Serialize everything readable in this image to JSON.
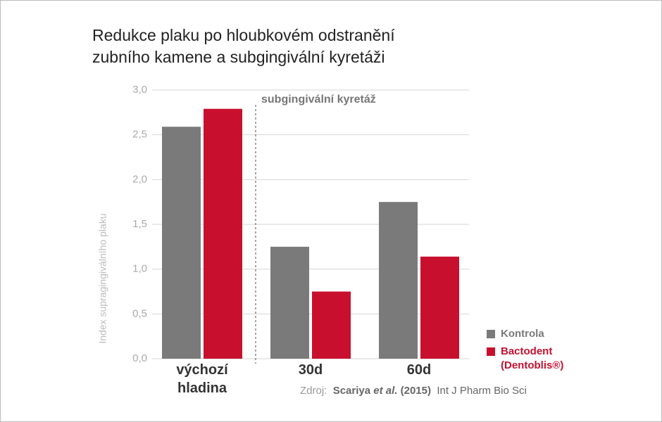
{
  "chart_data": {
    "type": "bar",
    "title": "Redukce plaku po hloubkovém odstranění zubního kamene a subgingivální kyretáži",
    "y_label": "Index supragingiválního plaku",
    "annotation": "subgingivální kyretáž",
    "categories": [
      "výchozí hladina",
      "30d",
      "60d"
    ],
    "series": [
      {
        "name": "Kontrola",
        "color": "#7a7a7a",
        "values": [
          2.59,
          1.25,
          1.75
        ]
      },
      {
        "name": "Bactodent (Dentoblis®)",
        "color": "#c8102e",
        "values": [
          2.79,
          0.75,
          1.14
        ]
      }
    ],
    "ylim": [
      0,
      3
    ],
    "yticks": [
      {
        "value": 0,
        "label": "0,0"
      },
      {
        "value": 0.5,
        "label": "0,5"
      },
      {
        "value": 1,
        "label": "1,0"
      },
      {
        "value": 1.5,
        "label": "1,5"
      },
      {
        "value": 2,
        "label": "2,0"
      },
      {
        "value": 2.5,
        "label": "2,5"
      },
      {
        "value": 3,
        "label": "3,0"
      }
    ],
    "grid": true,
    "legend": "bottom-right",
    "source": {
      "prefix": "Zdroj:",
      "authors": "Scariya",
      "etal": "et al.",
      "year": "(2015)",
      "journal": "Int J Pharm Bio Sci"
    }
  }
}
